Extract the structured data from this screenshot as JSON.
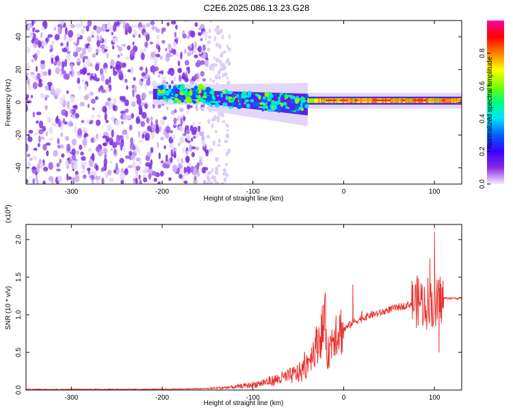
{
  "title": "C2E6.2025.086.13.23.G28",
  "chart_data": [
    {
      "type": "heatmap",
      "title": "C2E6.2025.086.13.23.G28",
      "xlabel": "Height of straight line (km)",
      "ylabel": "Frequency (Hz)",
      "xlim": [
        -350,
        130
      ],
      "ylim": [
        -50,
        50
      ],
      "x_ticks": [
        -300,
        -200,
        -100,
        0,
        100
      ],
      "y_ticks": [
        -40,
        -20,
        0,
        20,
        40
      ],
      "colorbar": {
        "label": "Normalized spectral amplitude",
        "range": [
          0,
          1
        ],
        "ticks": [
          "0.0",
          "0.2",
          "0.4",
          "0.6",
          "0.8"
        ],
        "colors": [
          "#f3ecfb",
          "#8a2be2",
          "#3a00ff",
          "#0060ff",
          "#00e0ff",
          "#00ff80",
          "#80ff00",
          "#ffff00",
          "#ff8000",
          "#ff0000",
          "#ff00a0"
        ]
      },
      "regions": [
        {
          "name": "noise",
          "x_range": [
            -350,
            -150
          ],
          "freq_range": [
            -50,
            50
          ],
          "amplitude": 0.1
        },
        {
          "name": "faint-noise",
          "x_range": [
            -150,
            -125
          ],
          "freq_range": [
            -50,
            50
          ],
          "amplitude": 0.05
        },
        {
          "name": "signal-onset",
          "x_range": [
            -210,
            -150
          ],
          "freq_center": 5,
          "amplitude": 0.3
        },
        {
          "name": "signal-spread",
          "x_range": [
            -150,
            -40
          ],
          "freq_center": 2,
          "amplitude": 0.45
        },
        {
          "name": "signal-narrow",
          "x_range": [
            -40,
            130
          ],
          "freq_center": 1,
          "amplitude": 0.8
        }
      ]
    },
    {
      "type": "line",
      "xlabel": "Height of straight line (km)",
      "ylabel": "SNR (10 * v/v)",
      "y_multiplier": "(x10^4)",
      "xlim": [
        -350,
        130
      ],
      "ylim": [
        0,
        2.2
      ],
      "x_ticks": [
        -300,
        -200,
        -100,
        0,
        100
      ],
      "y_ticks": [
        "0.0",
        "0.5",
        "1.0",
        "1.5",
        "2.0"
      ],
      "series_color": "#e8302a",
      "x": [
        -350,
        -200,
        -150,
        -120,
        -100,
        -80,
        -60,
        -45,
        -30,
        -20,
        -18,
        -10,
        0,
        10,
        20,
        30,
        40,
        50,
        60,
        70,
        80,
        85,
        90,
        95,
        100,
        105,
        110,
        120,
        130
      ],
      "y": [
        0.01,
        0.01,
        0.02,
        0.04,
        0.07,
        0.12,
        0.18,
        0.25,
        0.6,
        0.9,
        0.45,
        0.8,
        0.8,
        0.9,
        0.95,
        1.0,
        1.02,
        1.07,
        1.1,
        1.13,
        1.17,
        1.2,
        1.1,
        1.25,
        1.05,
        1.2,
        1.22,
        1.22,
        1.22
      ],
      "peaks": [
        {
          "x": 10,
          "y": 1.4
        },
        {
          "x": 95,
          "y": 1.75
        },
        {
          "x": 100,
          "y": 2.1
        },
        {
          "x": 105,
          "y": 0.5
        }
      ]
    }
  ]
}
